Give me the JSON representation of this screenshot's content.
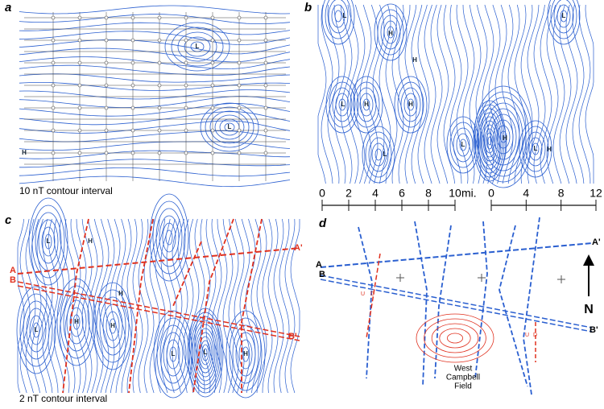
{
  "panels": [
    {
      "label": "a",
      "caption": "10 nT contour interval",
      "markers": [
        "L",
        "L",
        "H"
      ]
    },
    {
      "label": "b",
      "markers": [
        "L",
        "H",
        "H",
        "H",
        "L",
        "H",
        "L",
        "L",
        "H",
        "L",
        "L",
        "H"
      ]
    },
    {
      "label": "c",
      "caption": "2 nT contour interval",
      "markers": [
        "L",
        "H",
        "H",
        "L",
        "H",
        "H",
        "L",
        "L",
        "H"
      ],
      "profiles": [
        "A",
        "A'",
        "B",
        "B'"
      ]
    },
    {
      "label": "d",
      "profiles": [
        "A",
        "A'",
        "B",
        "B'"
      ],
      "north": "N",
      "faults": [
        "U",
        "D",
        "U",
        "D"
      ],
      "field": [
        "West",
        "Campbell",
        "Field"
      ]
    }
  ],
  "scale_bars": [
    {
      "ticks": [
        "0",
        "2",
        "4",
        "6",
        "8",
        "10"
      ],
      "unit": "mi."
    },
    {
      "ticks": [
        "0",
        "4",
        "8",
        "12"
      ]
    }
  ]
}
